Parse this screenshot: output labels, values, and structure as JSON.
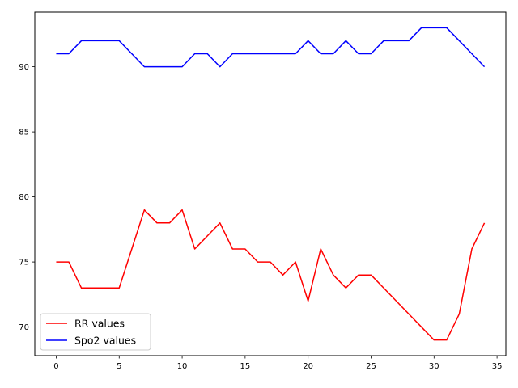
{
  "chart_data": {
    "type": "line",
    "title": "",
    "xlabel": "",
    "ylabel": "",
    "xlim": [
      -1.7,
      35.7
    ],
    "ylim": [
      67.8,
      94.2
    ],
    "xticks": [
      0,
      5,
      10,
      15,
      20,
      25,
      30,
      35
    ],
    "yticks": [
      70,
      75,
      80,
      85,
      90
    ],
    "grid": false,
    "legend_position": "lower-left",
    "x": [
      0,
      1,
      2,
      3,
      4,
      5,
      6,
      7,
      8,
      9,
      10,
      11,
      12,
      13,
      14,
      15,
      16,
      17,
      18,
      19,
      20,
      21,
      22,
      23,
      24,
      25,
      26,
      27,
      28,
      29,
      30,
      31,
      32,
      33,
      34
    ],
    "series": [
      {
        "name": "RR values",
        "color": "#ff0000",
        "values": [
          75,
          75,
          73,
          73,
          73,
          73,
          76,
          79,
          78,
          78,
          79,
          76,
          77,
          78,
          76,
          76,
          75,
          75,
          74,
          75,
          72,
          76,
          74,
          73,
          74,
          74,
          73,
          72,
          71,
          70,
          69,
          69,
          71,
          76,
          78
        ]
      },
      {
        "name": "Spo2 values",
        "color": "#0000ff",
        "values": [
          91,
          91,
          92,
          92,
          92,
          92,
          91,
          90,
          90,
          90,
          90,
          91,
          91,
          90,
          91,
          91,
          91,
          91,
          91,
          91,
          92,
          91,
          91,
          92,
          91,
          91,
          92,
          92,
          92,
          93,
          93,
          93,
          92,
          91,
          90
        ]
      }
    ]
  }
}
